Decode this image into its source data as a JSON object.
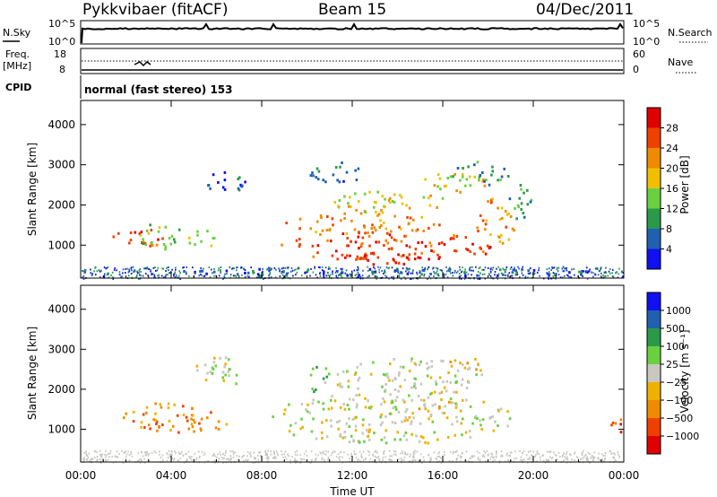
{
  "header": {
    "station": "Pykkvibaer (fitACF)",
    "beam": "Beam 15",
    "date": "04/Dec/2011"
  },
  "strips": {
    "nsky_label": "N.Sky",
    "nsearch_label": "N.Search",
    "freq_label": "Freq.",
    "freq_unit": "[MHz]",
    "nave_label": "Nave",
    "cpid_label": "CPID",
    "cpid_text": "normal (fast stereo) 153",
    "noise_ticks": [
      "10^5",
      "10^0"
    ],
    "freq_ticks": [
      "18",
      "8"
    ],
    "nave_ticks": [
      "60",
      "0"
    ]
  },
  "colors": {
    "power": [
      "#1010f0",
      "#2060b0",
      "#2a9a4a",
      "#6ad040",
      "#f0c000",
      "#f08a00",
      "#f04000",
      "#e00000"
    ],
    "velocity": [
      "#e00000",
      "#f04000",
      "#f08a00",
      "#f0b000",
      "#c8c8c0",
      "#6ad040",
      "#2a9a4a",
      "#2060b0",
      "#1010f0"
    ]
  },
  "chart_data": [
    {
      "type": "heatmap",
      "name": "power",
      "xlabel": "",
      "ylabel": "Slant Range [km]",
      "xlim": [
        0,
        24
      ],
      "ylim": [
        180,
        4600
      ],
      "yticks": [
        1000,
        2000,
        3000,
        4000
      ],
      "colorbar_label": "Power [dB]",
      "colorbar_ticks": [
        "28",
        "24",
        "20",
        "16",
        "12",
        "8",
        "4"
      ],
      "blobs": [
        {
          "x": 2.5,
          "y": 1200,
          "rx": 1.3,
          "ry": 250,
          "level": 6
        },
        {
          "x": 3.4,
          "y": 1250,
          "rx": 1.1,
          "ry": 330,
          "level": 3
        },
        {
          "x": 5.4,
          "y": 1200,
          "rx": 0.8,
          "ry": 230,
          "level": 3
        },
        {
          "x": 13.6,
          "y": 1000,
          "rx": 5.0,
          "ry": 380,
          "level": 6
        },
        {
          "x": 13.6,
          "y": 700,
          "rx": 2.3,
          "ry": 160,
          "level": 7
        },
        {
          "x": 12.5,
          "y": 1550,
          "rx": 3.5,
          "ry": 280,
          "level": 5
        },
        {
          "x": 13.5,
          "y": 2100,
          "rx": 2.8,
          "ry": 280,
          "level": 4
        },
        {
          "x": 16.5,
          "y": 2600,
          "rx": 1.6,
          "ry": 260,
          "level": 4
        },
        {
          "x": 17.5,
          "y": 2800,
          "rx": 1.4,
          "ry": 300,
          "level": 2
        },
        {
          "x": 11.2,
          "y": 2800,
          "rx": 1.2,
          "ry": 300,
          "level": 1
        },
        {
          "x": 6.5,
          "y": 2600,
          "rx": 1.0,
          "ry": 300,
          "level": 1
        },
        {
          "x": 18.3,
          "y": 1600,
          "rx": 0.9,
          "ry": 600,
          "level": 5
        },
        {
          "x": 19.4,
          "y": 2100,
          "rx": 0.6,
          "ry": 500,
          "level": 2
        },
        {
          "x": 12.0,
          "y": 350,
          "rx": 12.0,
          "ry": 90,
          "level": 1
        }
      ]
    },
    {
      "type": "heatmap",
      "name": "velocity",
      "xlabel": "Time UT",
      "ylabel": "Slant Range [km]",
      "xlim": [
        0,
        24
      ],
      "ylim": [
        180,
        4600
      ],
      "xticks": [
        "00:00",
        "04:00",
        "08:00",
        "12:00",
        "16:00",
        "20:00",
        "00:00"
      ],
      "yticks": [
        1000,
        2000,
        3000,
        4000
      ],
      "colorbar_label": "Velocity [m s⁻¹]",
      "colorbar_ticks": [
        "1000",
        "500",
        "100",
        "25",
        "−25",
        "−100",
        "−500",
        "−1000"
      ],
      "blobs": [
        {
          "x": 3.5,
          "y": 1300,
          "rx": 2.0,
          "ry": 380,
          "level": 2
        },
        {
          "x": 5.5,
          "y": 1200,
          "rx": 1.0,
          "ry": 280,
          "level": 2
        },
        {
          "x": 6.2,
          "y": 2500,
          "rx": 1.2,
          "ry": 400,
          "level": 4
        },
        {
          "x": 13.6,
          "y": 1300,
          "rx": 5.5,
          "ry": 650,
          "level": 4
        },
        {
          "x": 14.5,
          "y": 2300,
          "rx": 3.5,
          "ry": 500,
          "level": 4
        },
        {
          "x": 15.5,
          "y": 1700,
          "rx": 0.8,
          "ry": 250,
          "level": 3
        },
        {
          "x": 17.0,
          "y": 2600,
          "rx": 0.8,
          "ry": 300,
          "level": 3
        },
        {
          "x": 10.5,
          "y": 2300,
          "rx": 0.5,
          "ry": 400,
          "level": 5
        },
        {
          "x": 23.6,
          "y": 1100,
          "rx": 0.4,
          "ry": 250,
          "level": 1
        }
      ]
    }
  ]
}
